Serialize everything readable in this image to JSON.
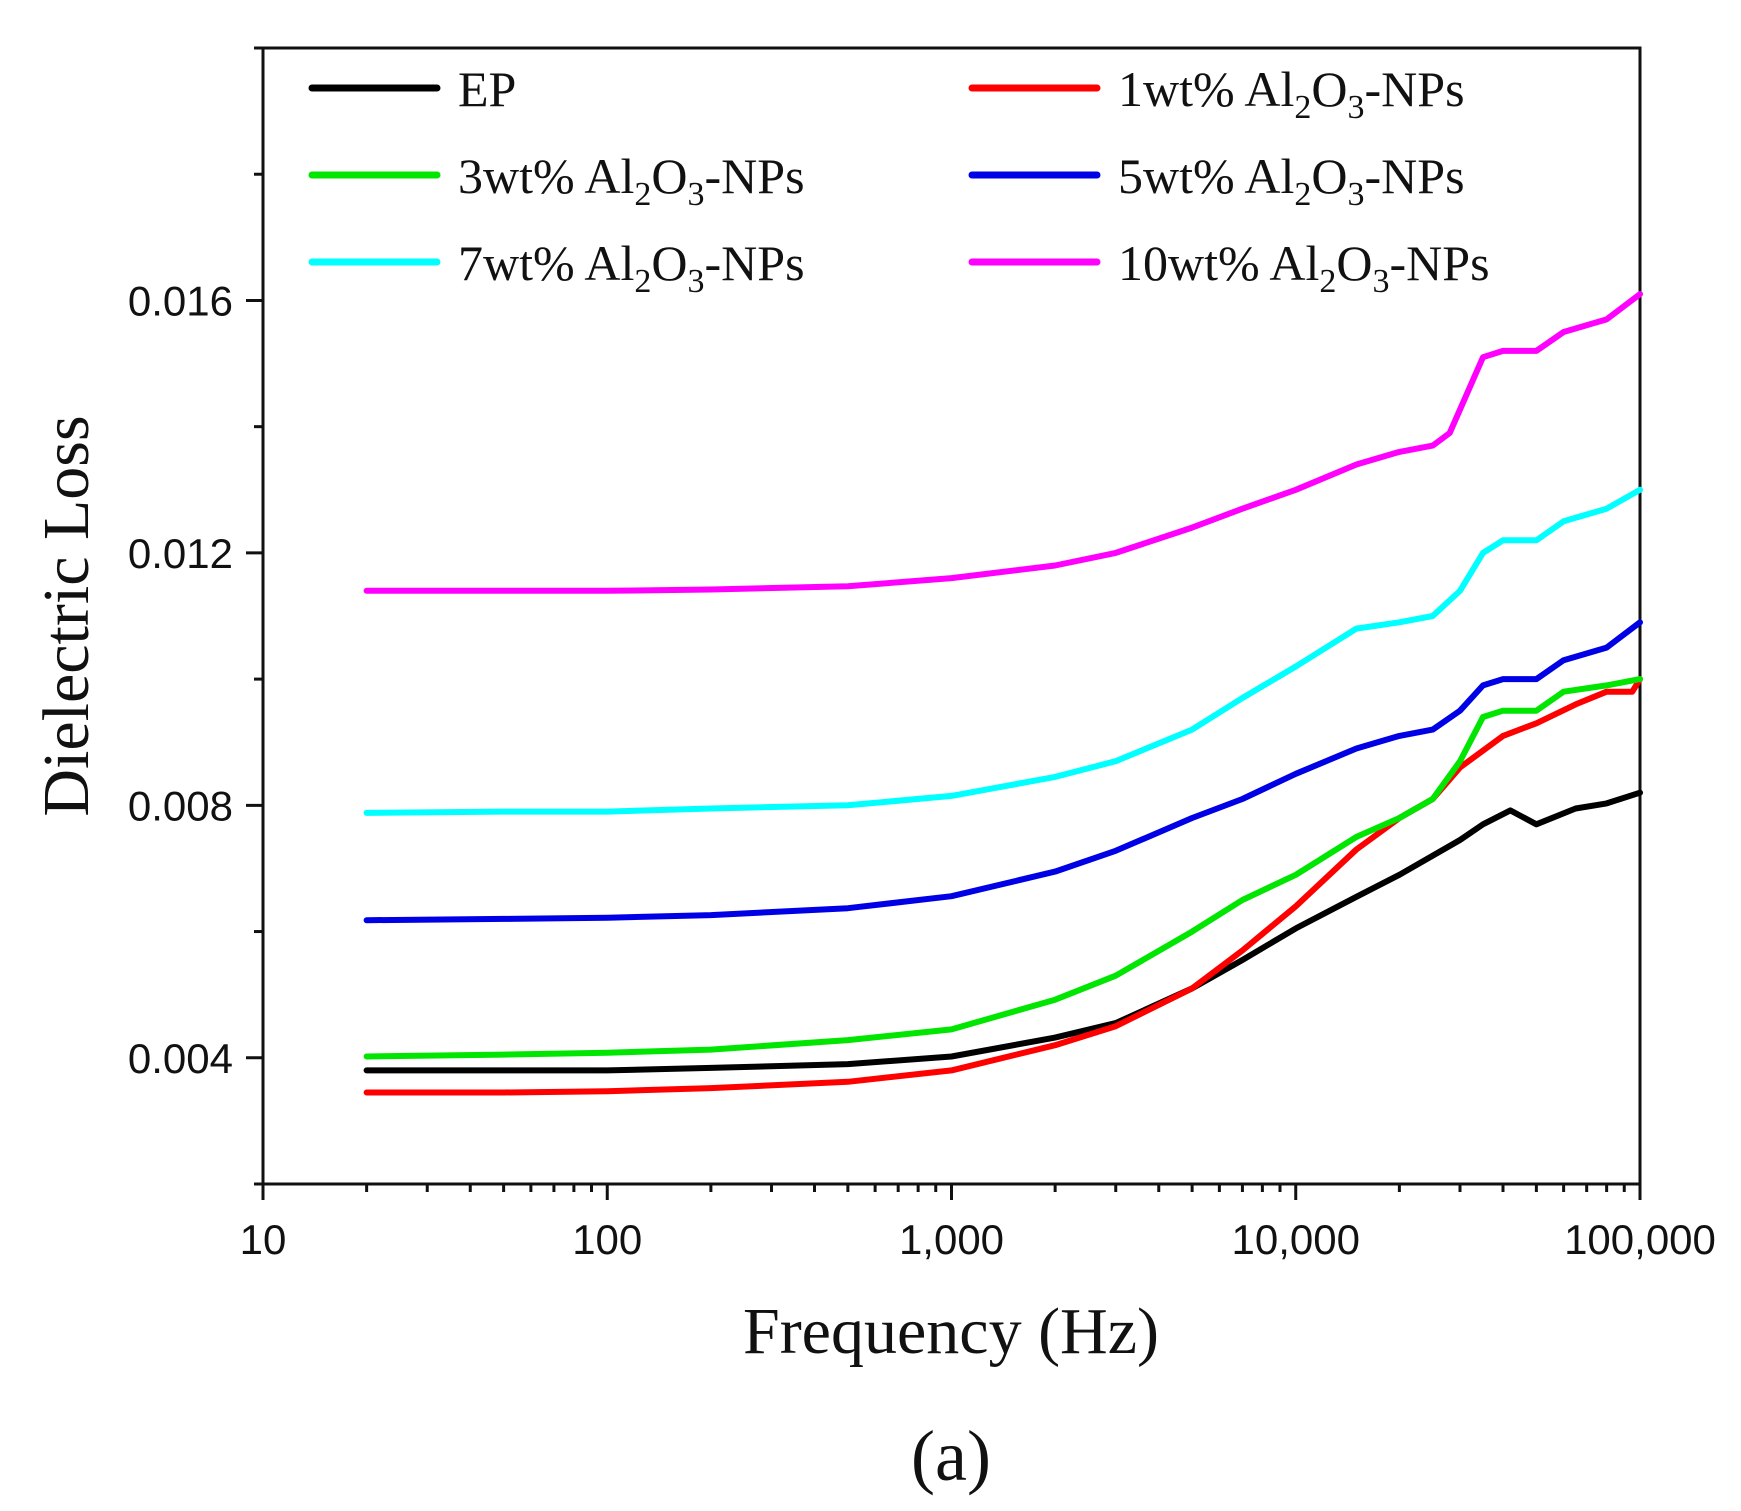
{
  "chart_data": {
    "type": "line",
    "xlabel": "Frequency (Hz)",
    "ylabel": "Dielectric Loss",
    "panel_label": "(a)",
    "x_scale": "log",
    "xlim": [
      10,
      100000
    ],
    "ylim": [
      0.002,
      0.02
    ],
    "x_ticks": [
      10,
      100,
      1000,
      10000,
      100000
    ],
    "x_tick_labels": [
      "10",
      "100",
      "1,000",
      "10,000",
      "100,000"
    ],
    "y_ticks": [
      0.004,
      0.008,
      0.012,
      0.016
    ],
    "y_tick_labels": [
      "0.004",
      "0.008",
      "0.012",
      "0.016"
    ],
    "legend": {
      "placement": "top",
      "columns": 2
    },
    "series": [
      {
        "name": "EP",
        "label_main": "EP",
        "label_sub": "",
        "label_mid": "",
        "label_sub2": "",
        "label_tail": "",
        "color": "#000000",
        "x": [
          20,
          50,
          100,
          200,
          500,
          1000,
          2000,
          3000,
          5000,
          7000,
          10000,
          15000,
          20000,
          30000,
          35000,
          42000,
          50000,
          65000,
          80000,
          100000
        ],
        "y": [
          0.0038,
          0.0038,
          0.0038,
          0.00384,
          0.0039,
          0.00402,
          0.00432,
          0.00455,
          0.0051,
          0.00555,
          0.00605,
          0.00655,
          0.0069,
          0.00745,
          0.0077,
          0.00792,
          0.0077,
          0.00795,
          0.00803,
          0.0082
        ]
      },
      {
        "name": "1wt% Al2O3-NPs",
        "label_main": "1wt% Al",
        "label_sub": "2",
        "label_mid": "O",
        "label_sub2": "3",
        "label_tail": "-NPs",
        "color": "#ff0000",
        "x": [
          20,
          50,
          100,
          200,
          500,
          1000,
          2000,
          3000,
          5000,
          7000,
          10000,
          15000,
          20000,
          25000,
          30000,
          40000,
          50000,
          65000,
          80000,
          95000,
          100000
        ],
        "y": [
          0.00345,
          0.00345,
          0.00347,
          0.00352,
          0.00362,
          0.0038,
          0.0042,
          0.0045,
          0.0051,
          0.0057,
          0.0064,
          0.0073,
          0.0078,
          0.0081,
          0.0086,
          0.0091,
          0.0093,
          0.0096,
          0.0098,
          0.0098,
          0.01
        ]
      },
      {
        "name": "3wt% Al2O3-NPs",
        "label_main": "3wt% Al",
        "label_sub": "2",
        "label_mid": "O",
        "label_sub2": "3",
        "label_tail": "-NPs",
        "color": "#00e600",
        "x": [
          20,
          50,
          100,
          200,
          500,
          1000,
          2000,
          3000,
          5000,
          7000,
          10000,
          15000,
          20000,
          25000,
          30000,
          35000,
          40000,
          50000,
          60000,
          80000,
          100000
        ],
        "y": [
          0.00402,
          0.00405,
          0.00408,
          0.00413,
          0.00428,
          0.00445,
          0.00492,
          0.0053,
          0.006,
          0.0065,
          0.0069,
          0.0075,
          0.0078,
          0.0081,
          0.0087,
          0.0094,
          0.0095,
          0.0095,
          0.0098,
          0.0099,
          0.01
        ]
      },
      {
        "name": "5wt% Al2O3-NPs",
        "label_main": "5wt% Al",
        "label_sub": "2",
        "label_mid": "O",
        "label_sub2": "3",
        "label_tail": "-NPs",
        "color": "#0000e6",
        "x": [
          20,
          50,
          100,
          200,
          500,
          1000,
          2000,
          3000,
          5000,
          7000,
          10000,
          15000,
          20000,
          25000,
          30000,
          35000,
          40000,
          50000,
          60000,
          80000,
          100000
        ],
        "y": [
          0.00618,
          0.0062,
          0.00622,
          0.00626,
          0.00637,
          0.00656,
          0.00695,
          0.00728,
          0.0078,
          0.0081,
          0.0085,
          0.0089,
          0.0091,
          0.0092,
          0.0095,
          0.0099,
          0.01,
          0.01,
          0.0103,
          0.0105,
          0.0109
        ]
      },
      {
        "name": "7wt% Al2O3-NPs",
        "label_main": "7wt% Al",
        "label_sub": "2",
        "label_mid": "O",
        "label_sub2": "3",
        "label_tail": "-NPs",
        "color": "#00ffff",
        "x": [
          20,
          50,
          100,
          200,
          500,
          1000,
          2000,
          3000,
          5000,
          7000,
          10000,
          15000,
          20000,
          25000,
          30000,
          35000,
          40000,
          50000,
          60000,
          80000,
          100000
        ],
        "y": [
          0.00788,
          0.0079,
          0.0079,
          0.00795,
          0.008,
          0.00815,
          0.00845,
          0.0087,
          0.0092,
          0.0097,
          0.0102,
          0.0108,
          0.0109,
          0.011,
          0.0114,
          0.012,
          0.0122,
          0.0122,
          0.0125,
          0.0127,
          0.013
        ]
      },
      {
        "name": "10wt% Al2O3-NPs",
        "label_main": "10wt% Al",
        "label_sub": "2",
        "label_mid": "O",
        "label_sub2": "3",
        "label_tail": "-NPs",
        "color": "#ff00ff",
        "x": [
          20,
          50,
          100,
          200,
          500,
          1000,
          2000,
          3000,
          5000,
          7000,
          10000,
          15000,
          20000,
          25000,
          28000,
          35000,
          40000,
          50000,
          60000,
          80000,
          100000
        ],
        "y": [
          0.0114,
          0.0114,
          0.0114,
          0.01142,
          0.01147,
          0.0116,
          0.0118,
          0.012,
          0.0124,
          0.0127,
          0.013,
          0.0134,
          0.0136,
          0.0137,
          0.0139,
          0.0151,
          0.0152,
          0.0152,
          0.0155,
          0.0157,
          0.0161
        ]
      }
    ]
  }
}
